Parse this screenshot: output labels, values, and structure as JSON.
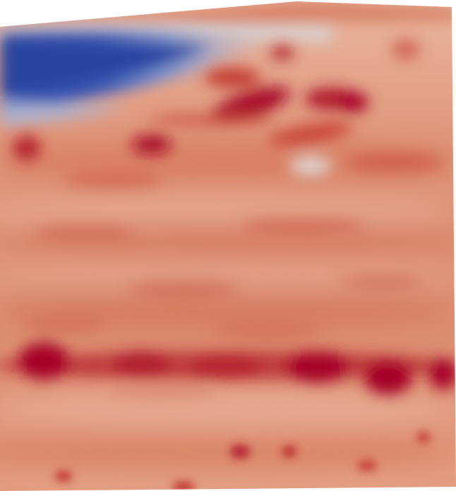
{
  "image": {
    "subject": "heatmap-field-render",
    "colormap": [
      "#3b4cc0",
      "#5a78d0",
      "#aab8d8",
      "#dcd3ce",
      "#e7a88c",
      "#d96a4e",
      "#c03a2c",
      "#a50626"
    ],
    "background_color": "#ffffff"
  }
}
